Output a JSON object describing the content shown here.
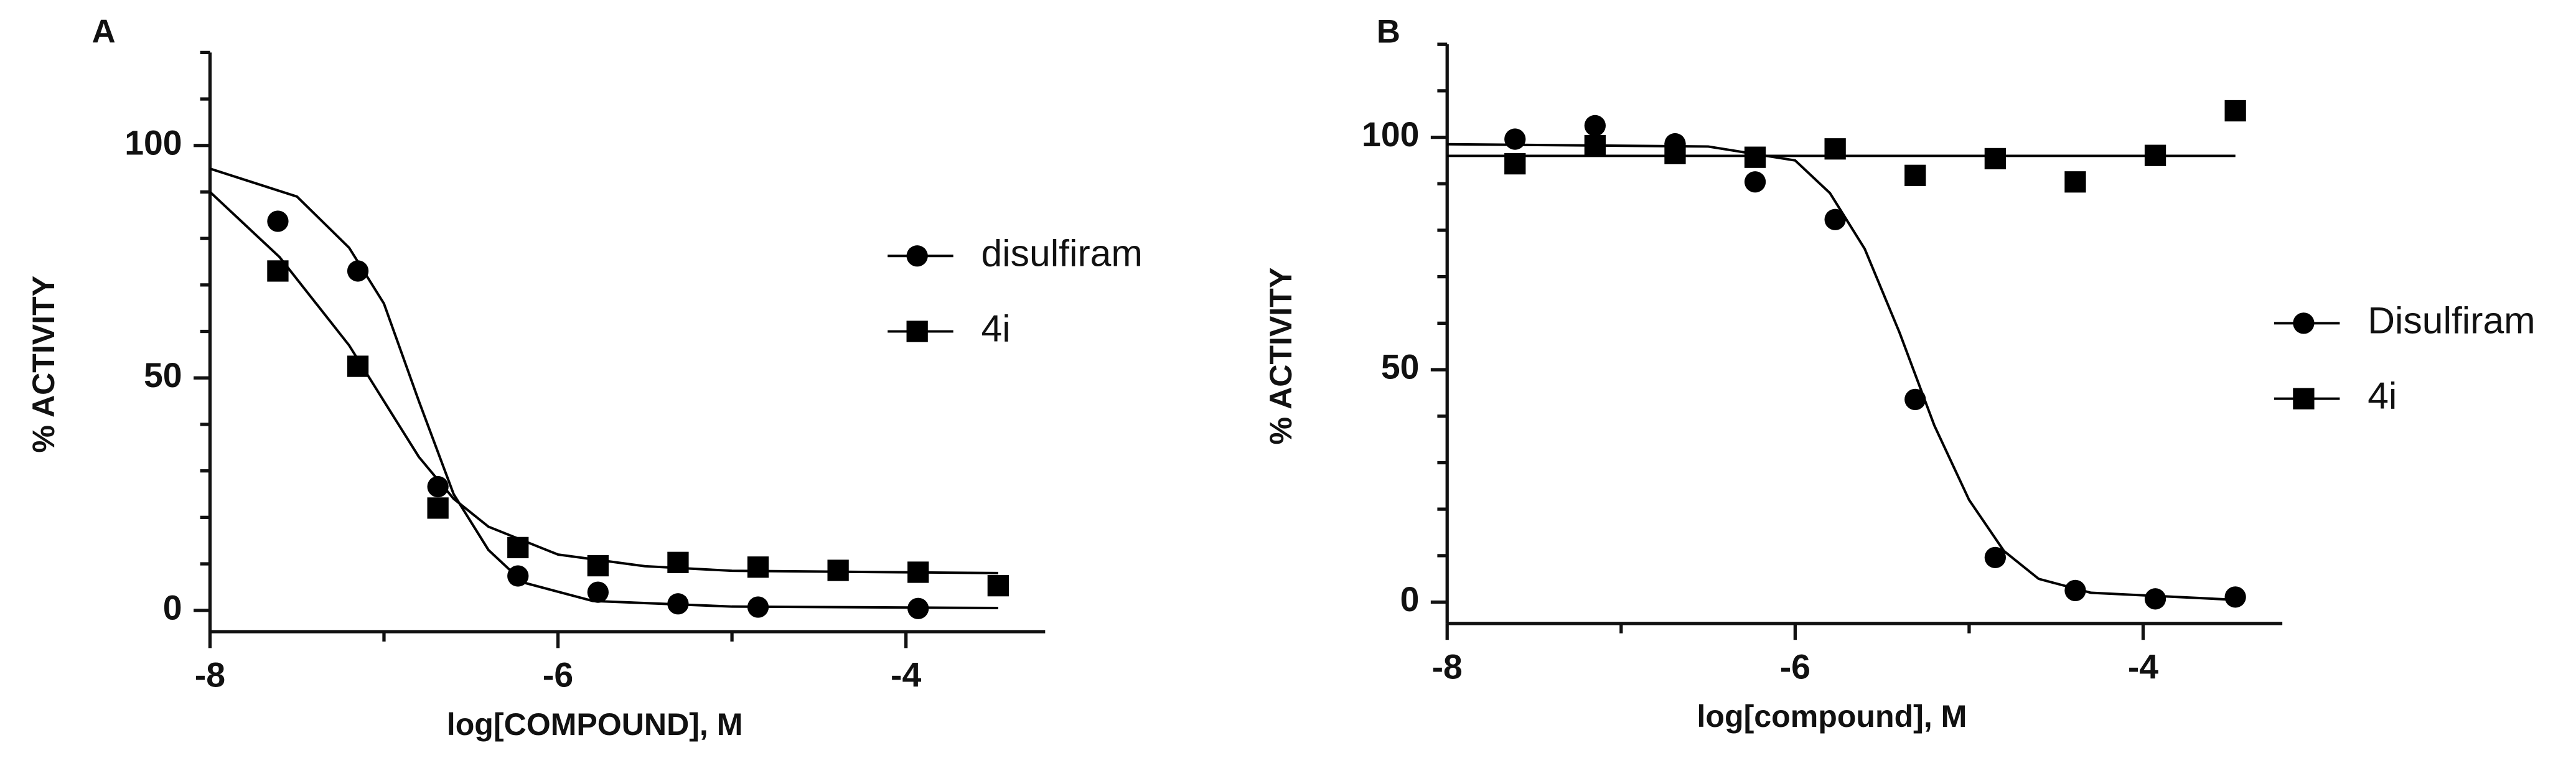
{
  "chart_data": [
    {
      "type": "scatter",
      "title": "A",
      "xlabel": "log[COMPOUND], M",
      "ylabel": "% ACTIVITY",
      "xlim": [
        -8,
        -3.2
      ],
      "xticks": [
        -8,
        -6,
        -4
      ],
      "xminorticks": [
        -7,
        -5
      ],
      "ylim": [
        0,
        120
      ],
      "yticks": [
        0,
        50,
        100
      ],
      "yminorticks": [
        10,
        20,
        30,
        40,
        60,
        70,
        80,
        90,
        110,
        120
      ],
      "x": [
        -7.61,
        -7.15,
        -6.69,
        -6.23,
        -5.77,
        -5.31,
        -4.85,
        -4.39,
        -3.93,
        -3.47
      ],
      "series": [
        {
          "name": "disulfiram",
          "marker": "circle",
          "color": "#000000",
          "values": [
            83.7,
            73,
            26.6,
            7.4,
            3.9,
            1.4,
            0.7,
            null,
            0.4,
            null
          ],
          "fit": {
            "x": [
              -8,
              -7.5,
              -7.2,
              -7,
              -6.8,
              -6.6,
              -6.4,
              -6.2,
              -5.8,
              -5,
              -3.47
            ],
            "values": [
              95,
              89,
              78,
              66,
              45,
              25,
              13,
              6,
              2,
              0.8,
              0.5
            ]
          }
        },
        {
          "name": "4i",
          "marker": "square",
          "color": "#000000",
          "values": [
            73,
            52.5,
            22,
            13.5,
            9.6,
            10.3,
            9.3,
            8.6,
            8.2,
            5.3
          ],
          "fit": {
            "x": [
              -8,
              -7.6,
              -7.2,
              -7,
              -6.8,
              -6.6,
              -6.4,
              -6,
              -5.5,
              -5,
              -3.47
            ],
            "values": [
              90,
              76,
              57,
              45,
              33,
              24,
              18,
              12,
              9.5,
              8.5,
              8
            ]
          }
        }
      ]
    },
    {
      "type": "scatter",
      "title": "B",
      "xlabel": "log[compound], M",
      "ylabel": "% ACTIVITY",
      "xlim": [
        -8,
        -3.2
      ],
      "xticks": [
        -8,
        -6,
        -4
      ],
      "xminorticks": [
        -7,
        -5
      ],
      "ylim": [
        0,
        120
      ],
      "yticks": [
        0,
        50,
        100
      ],
      "yminorticks": [
        10,
        20,
        30,
        40,
        60,
        70,
        80,
        90,
        110,
        120
      ],
      "x": [
        -7.61,
        -7.15,
        -6.69,
        -6.23,
        -5.77,
        -5.31,
        -4.85,
        -4.39,
        -3.93,
        -3.47
      ],
      "series": [
        {
          "name": "Disulfiram",
          "marker": "circle",
          "color": "#000000",
          "values": [
            99.6,
            102.5,
            98.6,
            90.4,
            82.3,
            43.6,
            9.6,
            2.5,
            0.7,
            1.1
          ],
          "fit": {
            "x": [
              -8,
              -6.5,
              -6,
              -5.8,
              -5.6,
              -5.4,
              -5.2,
              -5,
              -4.8,
              -4.6,
              -4.3,
              -3.47
            ],
            "values": [
              98.5,
              98,
              95,
              88,
              76,
              58,
              38,
              22,
              11,
              5,
              2,
              0.5
            ]
          }
        },
        {
          "name": "4i",
          "marker": "square",
          "color": "#000000",
          "values": [
            94.3,
            98.2,
            96.5,
            95.7,
            97.5,
            91.8,
            95.4,
            90.4,
            96.1,
            105.7
          ],
          "fit": {
            "x": [
              -8,
              -3.47
            ],
            "values": [
              96,
              96
            ]
          }
        }
      ]
    }
  ]
}
